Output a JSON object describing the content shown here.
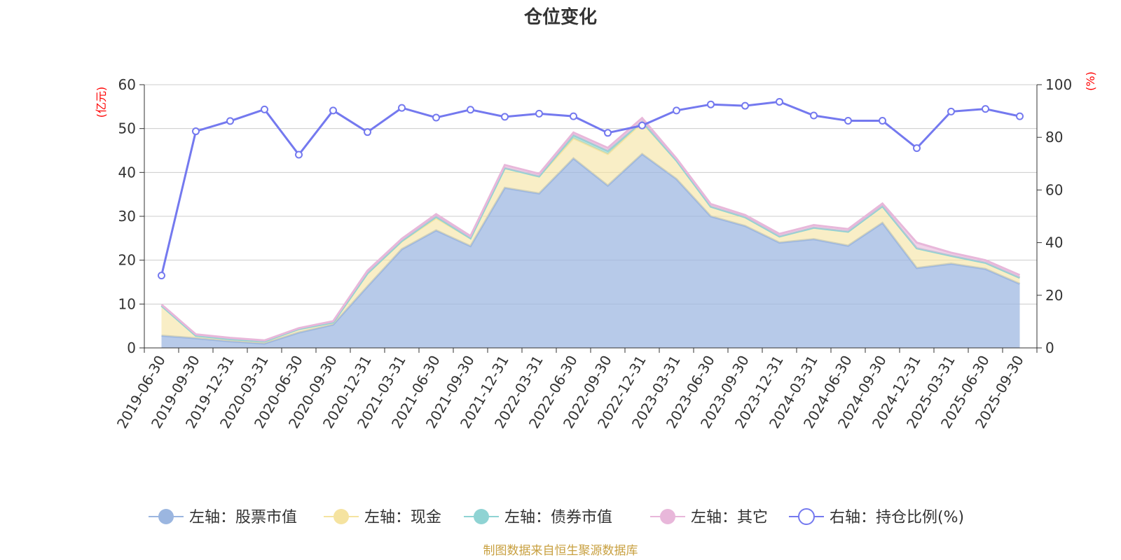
{
  "chart_data": {
    "type": "area",
    "title": "仓位变化",
    "left_axis_unit": "(亿元)",
    "right_axis_unit": "(%)",
    "left_ylim": [
      0,
      60
    ],
    "left_ticks": [
      0,
      10,
      20,
      30,
      40,
      50,
      60
    ],
    "right_ylim": [
      0,
      100
    ],
    "right_ticks": [
      0,
      20,
      40,
      60,
      80,
      100
    ],
    "categories": [
      "2019-06-30",
      "2019-09-30",
      "2019-12-31",
      "2020-03-31",
      "2020-06-30",
      "2020-09-30",
      "2020-12-31",
      "2021-03-31",
      "2021-06-30",
      "2021-09-30",
      "2021-12-31",
      "2022-03-31",
      "2022-06-30",
      "2022-09-30",
      "2022-12-31",
      "2023-03-31",
      "2023-06-30",
      "2023-09-30",
      "2023-12-31",
      "2024-03-31",
      "2024-06-30",
      "2024-09-30",
      "2024-12-31",
      "2025-03-31",
      "2025-06-30",
      "2025-09-30"
    ],
    "series": [
      {
        "name": "左轴：股票市值",
        "axis": "left",
        "stacked": true,
        "color": "#9bb6e0",
        "values": [
          2.8,
          2.2,
          1.5,
          1.0,
          3.5,
          5.3,
          14.0,
          22.5,
          26.8,
          23.2,
          36.5,
          35.2,
          43.2,
          37.0,
          44.2,
          38.5,
          30.0,
          27.8,
          24.0,
          24.8,
          23.3,
          28.5,
          18.2,
          19.2,
          18.0,
          14.6
        ]
      },
      {
        "name": "左轴：现金",
        "axis": "left",
        "stacked": true,
        "color": "#f5e3a0",
        "values": [
          6.8,
          0.6,
          0.5,
          0.5,
          0.8,
          0.5,
          3.0,
          1.8,
          2.8,
          1.8,
          4.5,
          3.9,
          4.6,
          7.2,
          7.2,
          4.2,
          2.2,
          2.0,
          1.4,
          2.6,
          3.2,
          3.8,
          4.5,
          1.8,
          1.4,
          1.4
        ]
      },
      {
        "name": "左轴：债券市值",
        "axis": "left",
        "stacked": true,
        "color": "#8fd3d3",
        "values": [
          0,
          0,
          0,
          0,
          0,
          0,
          0,
          0.1,
          0.3,
          0,
          0,
          0,
          0.7,
          0.7,
          0.2,
          0,
          0,
          0,
          0,
          0,
          0,
          0,
          0,
          0,
          0,
          0
        ]
      },
      {
        "name": "左轴：其它",
        "axis": "left",
        "stacked": true,
        "color": "#e8b7da",
        "values": [
          0.3,
          0.3,
          0.3,
          0.2,
          0.2,
          0.3,
          0.6,
          0.5,
          0.6,
          0.5,
          0.7,
          0.6,
          0.6,
          0.7,
          0.8,
          0.5,
          0.6,
          0.5,
          0.6,
          0.6,
          0.6,
          0.6,
          1.3,
          0.7,
          0.6,
          0.6
        ]
      },
      {
        "name": "右轴：持仓比例(%)",
        "axis": "right",
        "stacked": false,
        "color": "#7479ef",
        "values": [
          27.5,
          82.3,
          86.2,
          90.6,
          73.4,
          90.2,
          82.0,
          91.2,
          87.5,
          90.5,
          87.8,
          89.0,
          88.0,
          81.7,
          84.5,
          90.2,
          92.5,
          92.0,
          93.5,
          88.3,
          86.3,
          86.3,
          75.9,
          89.8,
          90.8,
          88.0
        ]
      }
    ]
  },
  "legend": [
    {
      "label": "左轴：股票市值",
      "style": "filled",
      "color": "#9bb6e0"
    },
    {
      "label": "左轴：现金",
      "style": "filled",
      "color": "#f5e3a0"
    },
    {
      "label": "左轴：债券市值",
      "style": "filled",
      "color": "#8fd3d3"
    },
    {
      "label": "左轴：其它",
      "style": "filled",
      "color": "#e8b7da"
    },
    {
      "label": "右轴：持仓比例(%)",
      "style": "hollow",
      "color": "#7479ef"
    }
  ],
  "source_note": "制图数据来自恒生聚源数据库"
}
